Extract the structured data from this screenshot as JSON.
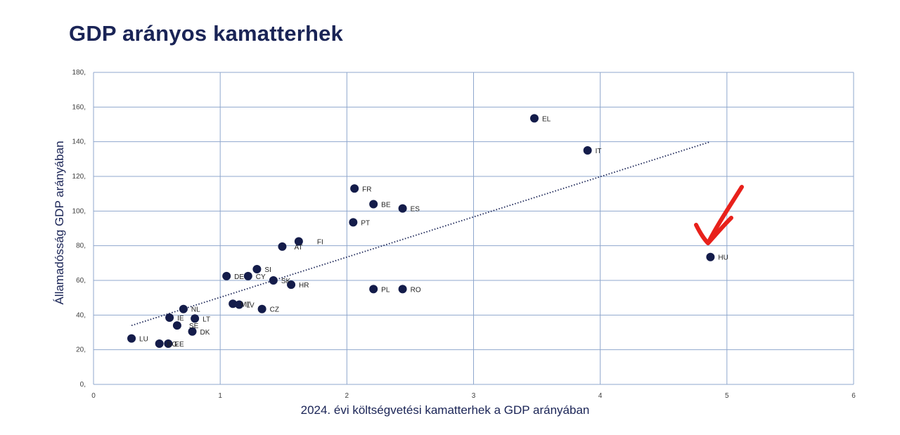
{
  "title": "GDP arányos kamatterhek",
  "chart_data": {
    "type": "scatter",
    "title": "GDP arányos kamatterhek",
    "xlabel": "2024. évi költségvetési kamatterhek a GDP arányában",
    "ylabel": "Államadósság GDP arányában",
    "xlim": [
      0,
      6
    ],
    "ylim": [
      0,
      180
    ],
    "xticks": [
      0,
      1,
      2,
      3,
      4,
      5,
      6
    ],
    "yticks": [
      0,
      20,
      40,
      60,
      80,
      100,
      120,
      140,
      160,
      180
    ],
    "ytick_labels": [
      "0,",
      "20,",
      "40,",
      "60,",
      "80,",
      "100,",
      "120,",
      "140,",
      "160,",
      "180,"
    ],
    "grid": true,
    "marker_color": "#141c4a",
    "points": [
      {
        "label": "EL",
        "x": 3.48,
        "y": 153.5
      },
      {
        "label": "IT",
        "x": 3.9,
        "y": 135
      },
      {
        "label": "FR",
        "x": 2.06,
        "y": 113
      },
      {
        "label": "BE",
        "x": 2.21,
        "y": 104
      },
      {
        "label": "ES",
        "x": 2.44,
        "y": 101.5
      },
      {
        "label": "PT",
        "x": 2.05,
        "y": 93.5
      },
      {
        "label": "FI",
        "x": 1.62,
        "y": 82.5
      },
      {
        "label": "AT",
        "x": 1.49,
        "y": 79.5
      },
      {
        "label": "SI",
        "x": 1.29,
        "y": 66.5
      },
      {
        "label": "DE",
        "x": 1.05,
        "y": 62.5
      },
      {
        "label": "CY",
        "x": 1.22,
        "y": 62.5
      },
      {
        "label": "SK",
        "x": 1.42,
        "y": 60
      },
      {
        "label": "HR",
        "x": 1.56,
        "y": 57.5
      },
      {
        "label": "PL",
        "x": 2.21,
        "y": 55
      },
      {
        "label": "RO",
        "x": 2.44,
        "y": 55
      },
      {
        "label": "MT",
        "x": 1.1,
        "y": 46.5
      },
      {
        "label": "LV",
        "x": 1.15,
        "y": 46
      },
      {
        "label": "CZ",
        "x": 1.33,
        "y": 43.5
      },
      {
        "label": "NL",
        "x": 0.71,
        "y": 43.5
      },
      {
        "label": "IE",
        "x": 0.6,
        "y": 38.5
      },
      {
        "label": "LT",
        "x": 0.8,
        "y": 38
      },
      {
        "label": "SE",
        "x": 0.66,
        "y": 34
      },
      {
        "label": "DK",
        "x": 0.78,
        "y": 30.5
      },
      {
        "label": "LU",
        "x": 0.3,
        "y": 26.5
      },
      {
        "label": "BG",
        "x": 0.52,
        "y": 23.5
      },
      {
        "label": "EE",
        "x": 0.59,
        "y": 23.5
      },
      {
        "label": "HU",
        "x": 4.87,
        "y": 73.5
      }
    ],
    "trendline": {
      "style": "dotted",
      "from": {
        "x": 0.3,
        "y": 34
      },
      "to": {
        "x": 4.87,
        "y": 140
      }
    },
    "annotation": {
      "type": "hand-drawn arrow",
      "color": "#e8211b",
      "points_to": "HU"
    }
  }
}
